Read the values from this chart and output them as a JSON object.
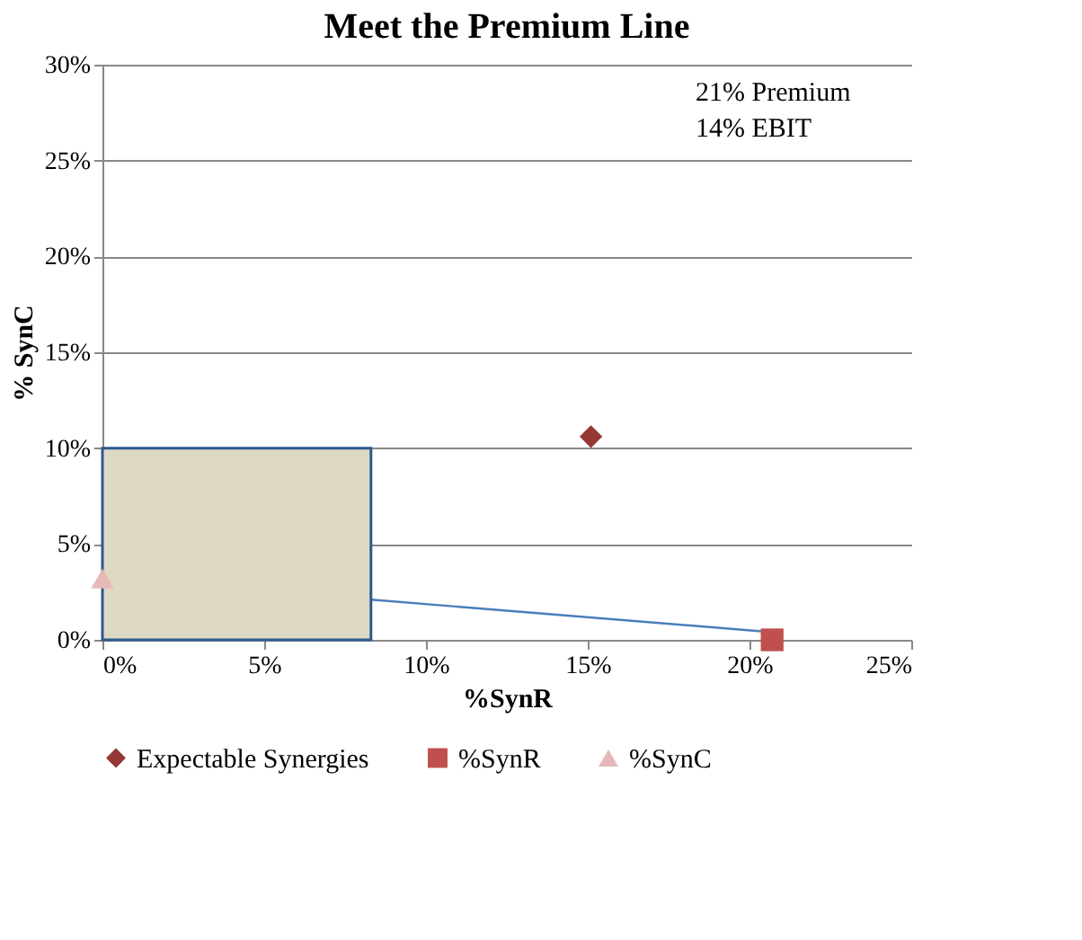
{
  "chart_data": {
    "type": "scatter",
    "title": "Meet the Premium Line",
    "xlabel": "%SynR",
    "ylabel": "% SynC",
    "xlim": [
      0,
      25
    ],
    "ylim": [
      0,
      30
    ],
    "xticks": [
      {
        "value": 0,
        "label": "0%"
      },
      {
        "value": 5,
        "label": "5%"
      },
      {
        "value": 10,
        "label": "10%"
      },
      {
        "value": 15,
        "label": "15%"
      },
      {
        "value": 20,
        "label": "20%"
      },
      {
        "value": 25,
        "label": "25%"
      }
    ],
    "yticks": [
      {
        "value": 0,
        "label": "0%"
      },
      {
        "value": 5,
        "label": "5%"
      },
      {
        "value": 10,
        "label": "10%"
      },
      {
        "value": 15,
        "label": "15%"
      },
      {
        "value": 20,
        "label": "20%"
      },
      {
        "value": 25,
        "label": "25%"
      },
      {
        "value": 30,
        "label": "30%"
      }
    ],
    "grid": "y",
    "legend": "bottom",
    "annotations": [
      "21% Premium",
      "14% EBIT"
    ],
    "series": [
      {
        "type": "line",
        "color": "#4a7ebb",
        "x": [
          8.3,
          20.7
        ],
        "values": [
          2.1,
          0.4
        ],
        "marker": "none"
      },
      {
        "type": "area",
        "color": "#ddd9c3",
        "x": [
          0,
          8.3
        ],
        "values": [
          10,
          10
        ]
      },
      {
        "name": "Expectable Synergies",
        "marker": "diamond",
        "color": "#953735",
        "x": [
          15.1
        ],
        "values": [
          10.6
        ]
      },
      {
        "name": "%SynR",
        "marker": "square",
        "color": "#c0504d",
        "x": [
          20.7
        ],
        "values": [
          0
        ]
      },
      {
        "name": "%SynC",
        "marker": "triangle",
        "color": "#e6b9b8",
        "x": [
          0
        ],
        "values": [
          3.2
        ]
      }
    ]
  }
}
